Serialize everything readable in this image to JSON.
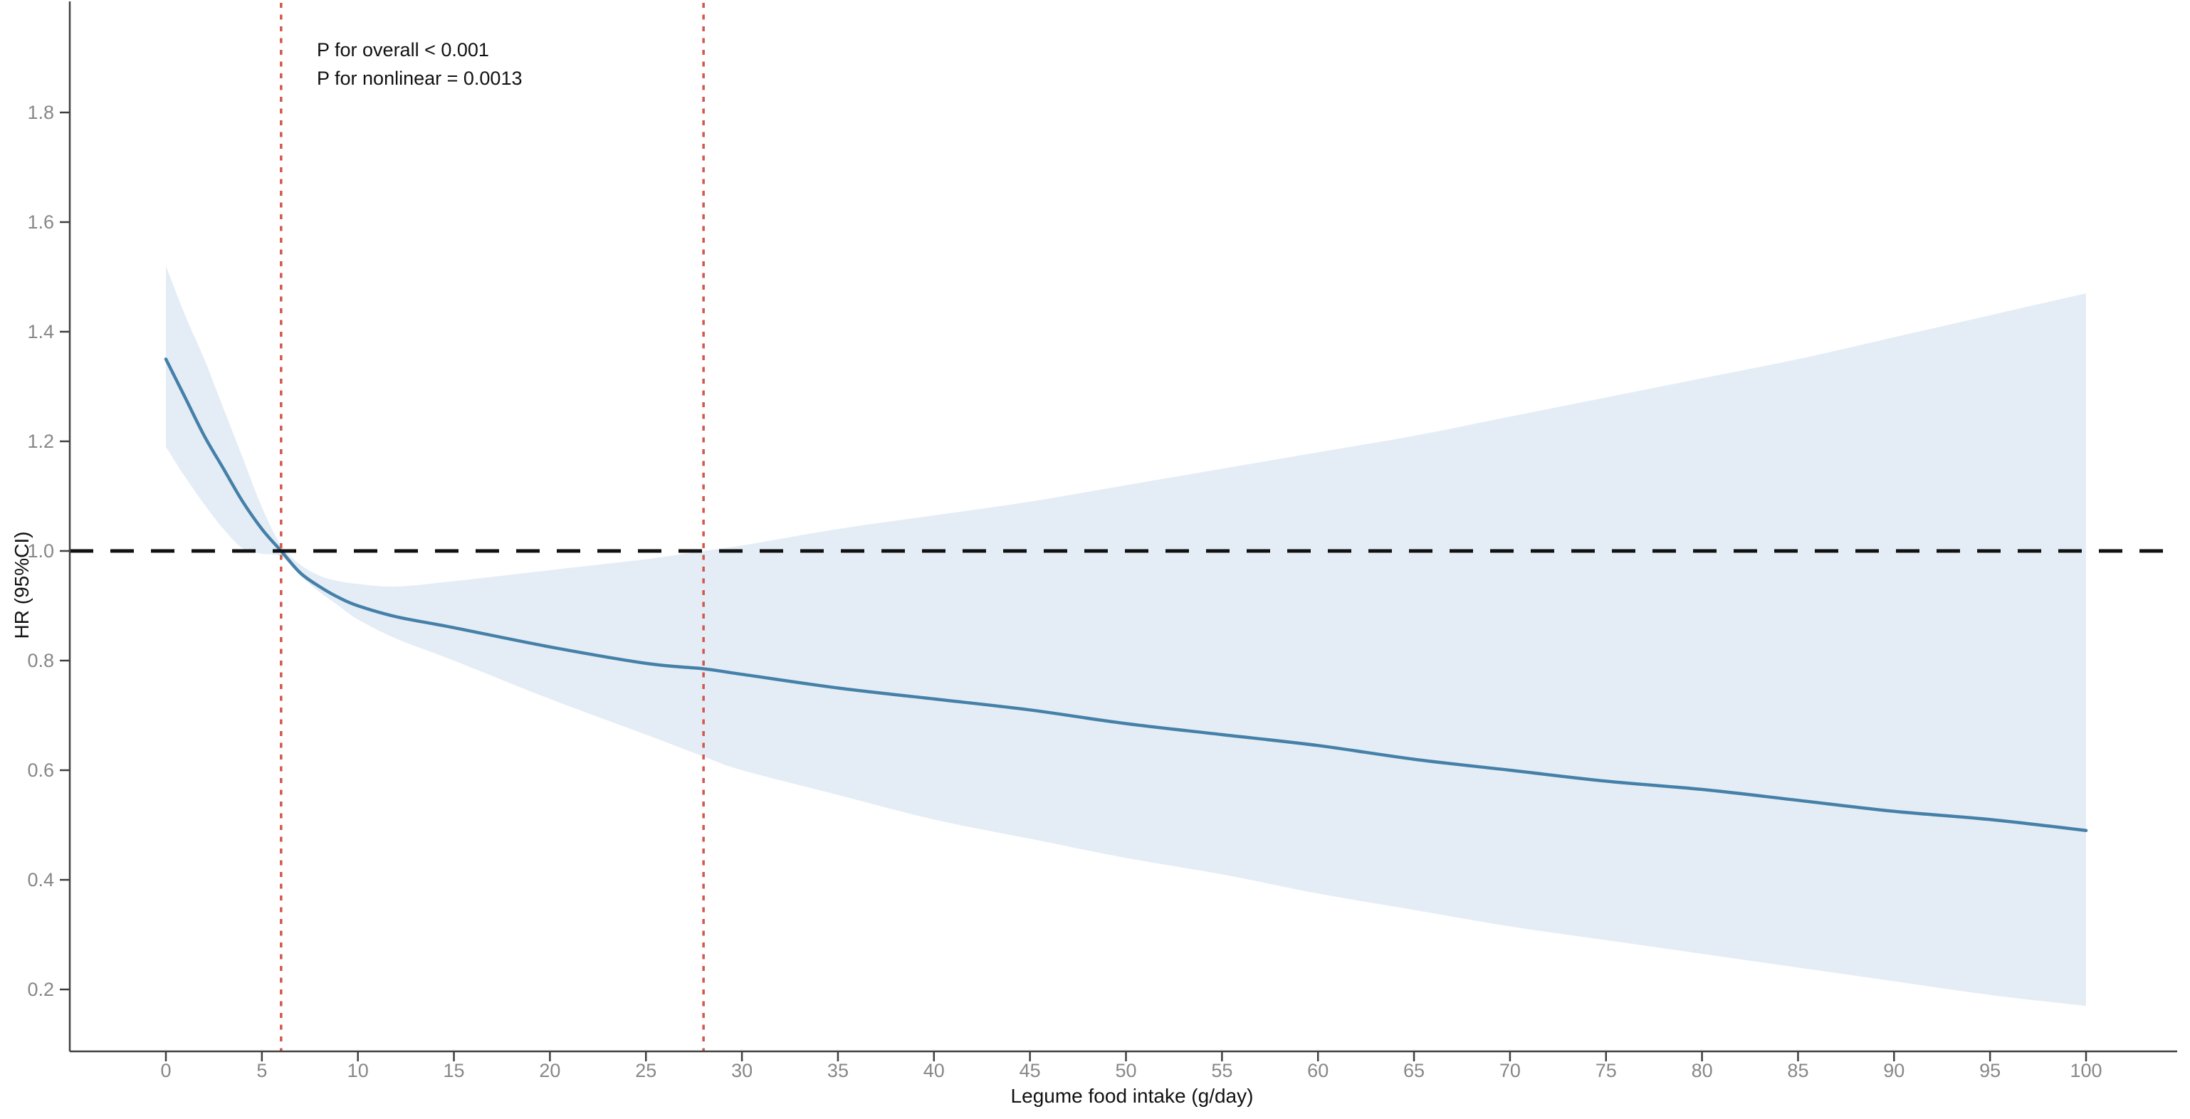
{
  "figure": {
    "background": "#ffffff"
  },
  "chart_data": {
    "type": "line",
    "title": "",
    "xlabel": "Legume food intake (g/day)",
    "ylabel": "HR (95%CI)",
    "x_ticks": [
      0,
      5,
      10,
      15,
      20,
      25,
      30,
      35,
      40,
      45,
      50,
      55,
      60,
      65,
      70,
      75,
      80,
      85,
      90,
      95,
      100
    ],
    "x_tick_labels": [
      "0",
      "5",
      "10",
      "15",
      "20",
      "25",
      "30",
      "35",
      "40",
      "45",
      "50",
      "55",
      "60",
      "65",
      "70",
      "75",
      "80",
      "85",
      "90",
      "95",
      "100"
    ],
    "y_ticks": [
      0.2,
      0.4,
      0.6,
      0.8,
      1.0,
      1.2,
      1.4,
      1.6,
      1.8
    ],
    "y_tick_labels": [
      "0.2",
      "0.4",
      "0.6",
      "0.8",
      "1.0",
      "1.2",
      "1.4",
      "1.6",
      "1.8"
    ],
    "xlim": [
      0,
      100
    ],
    "ylim": [
      0.09,
      2.0
    ],
    "grid": false,
    "legend": "none",
    "x": [
      0,
      1,
      2,
      3,
      4,
      5,
      6,
      7,
      8,
      9,
      10,
      12,
      15,
      20,
      25,
      28,
      30,
      35,
      40,
      45,
      50,
      55,
      60,
      65,
      70,
      75,
      80,
      85,
      90,
      95,
      100
    ],
    "series": [
      {
        "name": "HR",
        "values": [
          1.35,
          1.28,
          1.21,
          1.15,
          1.09,
          1.04,
          1.0,
          0.96,
          0.935,
          0.915,
          0.9,
          0.88,
          0.86,
          0.825,
          0.795,
          0.785,
          0.775,
          0.75,
          0.73,
          0.71,
          0.685,
          0.665,
          0.645,
          0.62,
          0.6,
          0.58,
          0.565,
          0.545,
          0.525,
          0.51,
          0.49
        ]
      },
      {
        "name": "CI upper",
        "values": [
          1.52,
          1.43,
          1.35,
          1.26,
          1.17,
          1.08,
          1.01,
          0.975,
          0.955,
          0.945,
          0.94,
          0.935,
          0.945,
          0.965,
          0.985,
          1.0,
          1.01,
          1.04,
          1.065,
          1.09,
          1.12,
          1.15,
          1.18,
          1.21,
          1.245,
          1.28,
          1.315,
          1.35,
          1.39,
          1.43,
          1.47
        ]
      },
      {
        "name": "CI lower",
        "values": [
          1.19,
          1.135,
          1.085,
          1.04,
          1.005,
          0.995,
          0.99,
          0.955,
          0.925,
          0.9,
          0.875,
          0.84,
          0.8,
          0.73,
          0.665,
          0.625,
          0.6,
          0.555,
          0.51,
          0.475,
          0.44,
          0.41,
          0.375,
          0.345,
          0.315,
          0.29,
          0.265,
          0.24,
          0.215,
          0.19,
          0.17
        ]
      }
    ],
    "reference_lines": {
      "horizontal": {
        "y": 1.0,
        "style": "dashed",
        "color": "#111111"
      },
      "vertical": [
        {
          "x": 6,
          "style": "dotted",
          "color": "#d0584c"
        },
        {
          "x": 28,
          "style": "dotted",
          "color": "#d0584c"
        }
      ]
    },
    "annotations": [
      {
        "text": "P for overall < 0.001"
      },
      {
        "text": "P for nonlinear = 0.0013"
      }
    ],
    "colors": {
      "line": "#4580a8",
      "band": "#e4edf6",
      "vline": "#d0584c",
      "ref_dash": "#111111",
      "axis": "#404040",
      "tick_label": "#878787"
    }
  }
}
